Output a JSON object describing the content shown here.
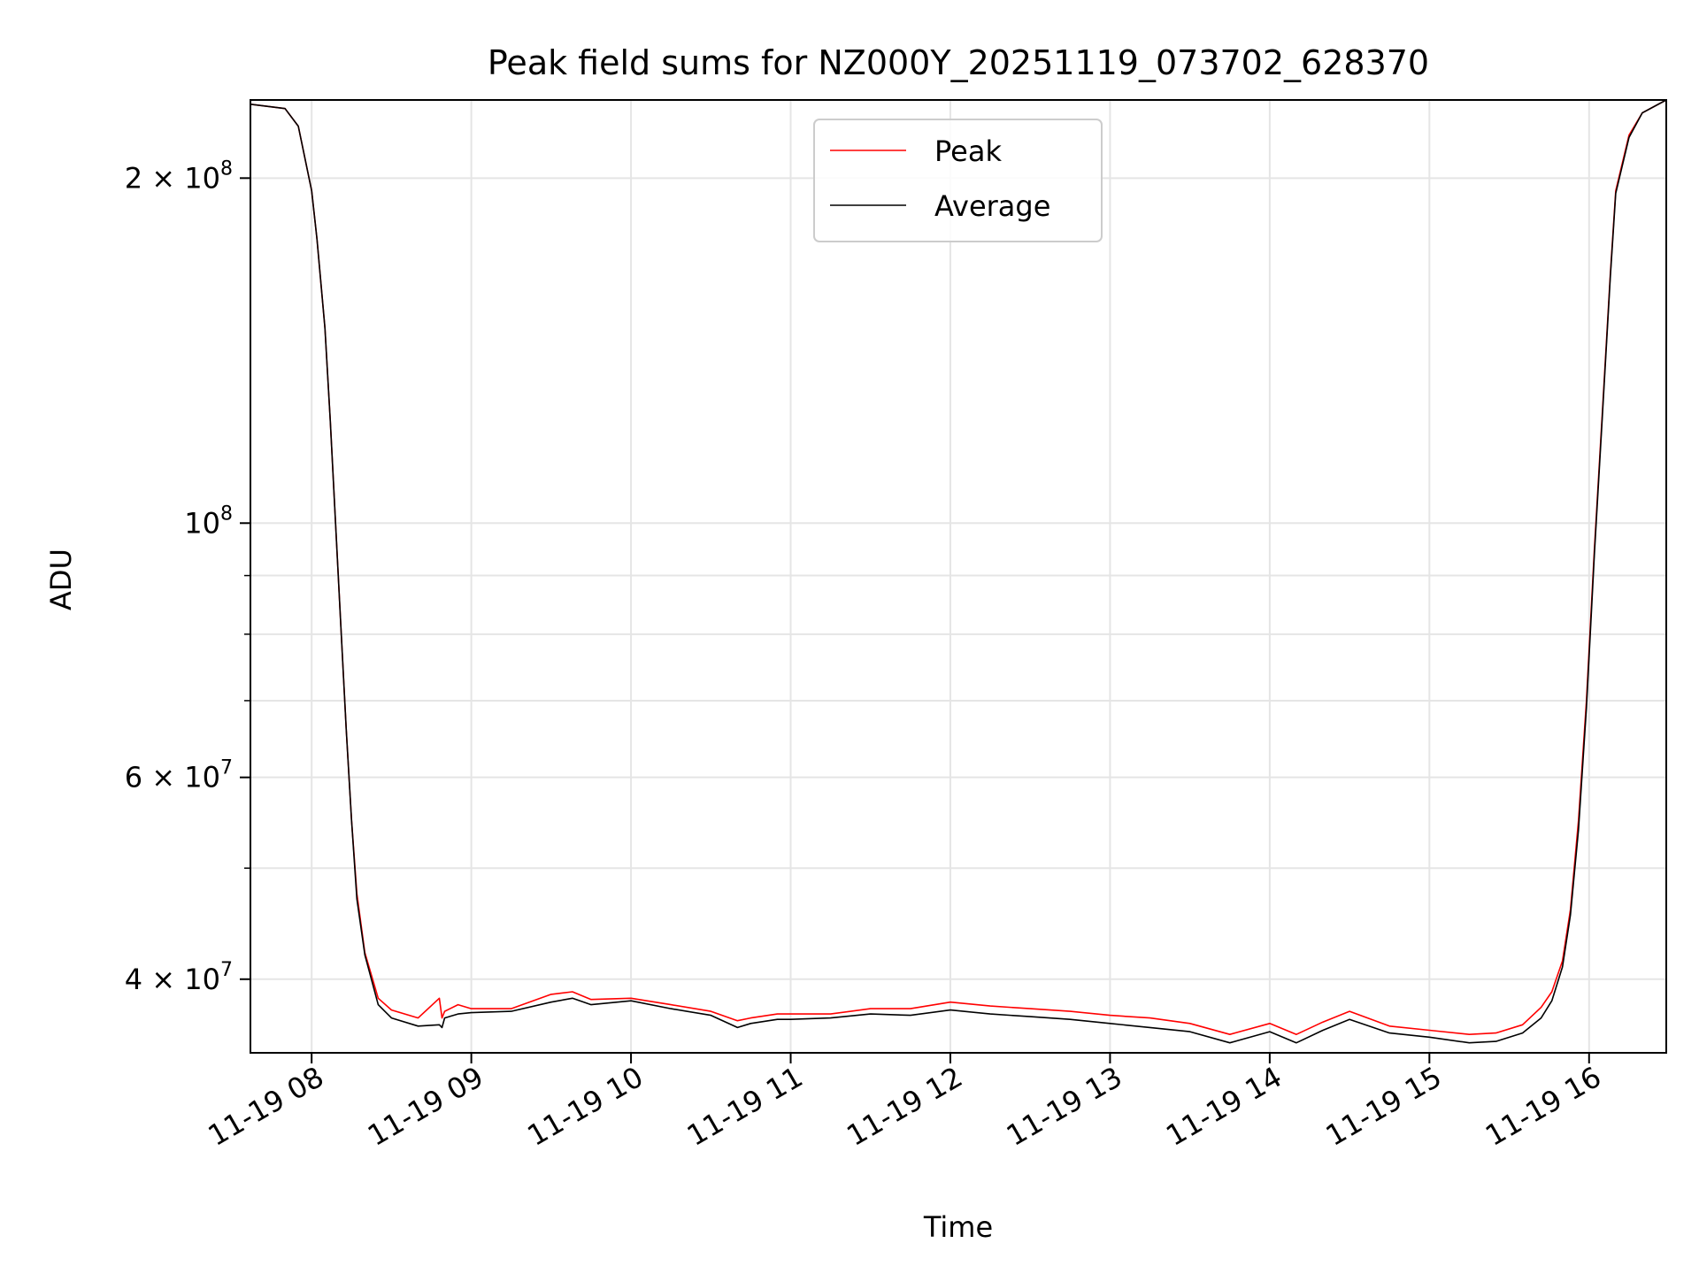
{
  "chart_data": {
    "type": "line",
    "title": "Peak field sums for NZ000Y_20251119_073702_628370",
    "xlabel": "Time",
    "ylabel": "ADU",
    "xaxis": {
      "kind": "time",
      "range": [
        "2025-11-19 07:37",
        "2025-11-19 16:29"
      ],
      "ticks": [
        {
          "value": "2025-11-19 08:00",
          "label": "11-19 08"
        },
        {
          "value": "2025-11-19 09:00",
          "label": "11-19 09"
        },
        {
          "value": "2025-11-19 10:00",
          "label": "11-19 10"
        },
        {
          "value": "2025-11-19 11:00",
          "label": "11-19 11"
        },
        {
          "value": "2025-11-19 12:00",
          "label": "11-19 12"
        },
        {
          "value": "2025-11-19 13:00",
          "label": "11-19 13"
        },
        {
          "value": "2025-11-19 14:00",
          "label": "11-19 14"
        },
        {
          "value": "2025-11-19 15:00",
          "label": "11-19 15"
        },
        {
          "value": "2025-11-19 16:00",
          "label": "11-19 16"
        }
      ]
    },
    "yaxis": {
      "scale": "log",
      "range": [
        34500000,
        234000000
      ],
      "major_ticks": [
        {
          "value": 40000000,
          "base": "4 × 10",
          "exp": "7"
        },
        {
          "value": 60000000,
          "base": "6 × 10",
          "exp": "7"
        },
        {
          "value": 100000000,
          "base": "10",
          "exp": "8"
        },
        {
          "value": 200000000,
          "base": "2 × 10",
          "exp": "8"
        }
      ],
      "minor_ticks": [
        50000000,
        70000000,
        80000000,
        90000000
      ]
    },
    "grid": true,
    "legend": {
      "position": "upper center"
    },
    "series": [
      {
        "name": "Peak",
        "color": "#ff0000",
        "x": [
          "2025-11-19 07:37",
          "2025-11-19 07:50",
          "2025-11-19 07:55",
          "2025-11-19 08:00",
          "2025-11-19 08:02",
          "2025-11-19 08:05",
          "2025-11-19 08:07",
          "2025-11-19 08:09",
          "2025-11-19 08:11",
          "2025-11-19 08:13",
          "2025-11-19 08:15",
          "2025-11-19 08:17",
          "2025-11-19 08:20",
          "2025-11-19 08:25",
          "2025-11-19 08:30",
          "2025-11-19 08:40",
          "2025-11-19 08:48",
          "2025-11-19 08:49",
          "2025-11-19 08:50",
          "2025-11-19 08:55",
          "2025-11-19 09:00",
          "2025-11-19 09:15",
          "2025-11-19 09:30",
          "2025-11-19 09:38",
          "2025-11-19 09:45",
          "2025-11-19 10:00",
          "2025-11-19 10:15",
          "2025-11-19 10:30",
          "2025-11-19 10:40",
          "2025-11-19 10:45",
          "2025-11-19 10:55",
          "2025-11-19 11:00",
          "2025-11-19 11:15",
          "2025-11-19 11:30",
          "2025-11-19 11:45",
          "2025-11-19 12:00",
          "2025-11-19 12:15",
          "2025-11-19 12:30",
          "2025-11-19 12:45",
          "2025-11-19 13:00",
          "2025-11-19 13:15",
          "2025-11-19 13:30",
          "2025-11-19 13:45",
          "2025-11-19 14:00",
          "2025-11-19 14:10",
          "2025-11-19 14:20",
          "2025-11-19 14:30",
          "2025-11-19 14:45",
          "2025-11-19 15:00",
          "2025-11-19 15:15",
          "2025-11-19 15:25",
          "2025-11-19 15:35",
          "2025-11-19 15:42",
          "2025-11-19 15:46",
          "2025-11-19 15:50",
          "2025-11-19 15:53",
          "2025-11-19 15:56",
          "2025-11-19 15:59",
          "2025-11-19 16:02",
          "2025-11-19 16:05",
          "2025-11-19 16:08",
          "2025-11-19 16:10",
          "2025-11-19 16:15",
          "2025-11-19 16:20",
          "2025-11-19 16:29"
        ],
        "y": [
          232000000,
          230000000,
          222000000,
          195000000,
          177000000,
          148000000,
          123000000,
          100000000,
          81000000,
          66000000,
          55000000,
          47500000,
          42200000,
          38500000,
          37600000,
          37000000,
          38500000,
          37000000,
          37500000,
          38000000,
          37700000,
          37700000,
          38800000,
          39000000,
          38400000,
          38500000,
          38000000,
          37500000,
          36800000,
          37000000,
          37300000,
          37300000,
          37300000,
          37700000,
          37700000,
          38200000,
          37900000,
          37700000,
          37500000,
          37200000,
          37000000,
          36600000,
          35800000,
          36600000,
          35800000,
          36700000,
          37500000,
          36400000,
          36100000,
          35800000,
          35900000,
          36500000,
          37800000,
          39000000,
          41500000,
          46000000,
          55000000,
          70000000,
          95000000,
          125000000,
          165000000,
          195000000,
          218000000,
          228000000,
          234000000
        ]
      },
      {
        "name": "Average",
        "color": "#000000",
        "x": [
          "2025-11-19 07:37",
          "2025-11-19 07:50",
          "2025-11-19 07:55",
          "2025-11-19 08:00",
          "2025-11-19 08:02",
          "2025-11-19 08:05",
          "2025-11-19 08:07",
          "2025-11-19 08:09",
          "2025-11-19 08:11",
          "2025-11-19 08:13",
          "2025-11-19 08:15",
          "2025-11-19 08:17",
          "2025-11-19 08:20",
          "2025-11-19 08:25",
          "2025-11-19 08:30",
          "2025-11-19 08:40",
          "2025-11-19 08:48",
          "2025-11-19 08:49",
          "2025-11-19 08:50",
          "2025-11-19 08:55",
          "2025-11-19 09:00",
          "2025-11-19 09:15",
          "2025-11-19 09:30",
          "2025-11-19 09:38",
          "2025-11-19 09:45",
          "2025-11-19 10:00",
          "2025-11-19 10:15",
          "2025-11-19 10:30",
          "2025-11-19 10:40",
          "2025-11-19 10:45",
          "2025-11-19 10:55",
          "2025-11-19 11:00",
          "2025-11-19 11:15",
          "2025-11-19 11:30",
          "2025-11-19 11:45",
          "2025-11-19 12:00",
          "2025-11-19 12:15",
          "2025-11-19 12:30",
          "2025-11-19 12:45",
          "2025-11-19 13:00",
          "2025-11-19 13:15",
          "2025-11-19 13:30",
          "2025-11-19 13:45",
          "2025-11-19 14:00",
          "2025-11-19 14:10",
          "2025-11-19 14:20",
          "2025-11-19 14:30",
          "2025-11-19 14:45",
          "2025-11-19 15:00",
          "2025-11-19 15:15",
          "2025-11-19 15:25",
          "2025-11-19 15:35",
          "2025-11-19 15:42",
          "2025-11-19 15:46",
          "2025-11-19 15:50",
          "2025-11-19 15:53",
          "2025-11-19 15:56",
          "2025-11-19 15:59",
          "2025-11-19 16:02",
          "2025-11-19 16:05",
          "2025-11-19 16:08",
          "2025-11-19 16:10",
          "2025-11-19 16:15",
          "2025-11-19 16:20",
          "2025-11-19 16:29"
        ],
        "y": [
          232000000,
          230000000,
          222000000,
          195000000,
          177000000,
          148000000,
          123000000,
          100000000,
          81000000,
          66000000,
          55000000,
          47000000,
          42000000,
          38000000,
          37000000,
          36400000,
          36500000,
          36300000,
          37000000,
          37300000,
          37400000,
          37500000,
          38200000,
          38500000,
          38000000,
          38300000,
          37700000,
          37200000,
          36300000,
          36600000,
          36900000,
          36900000,
          37000000,
          37300000,
          37200000,
          37600000,
          37300000,
          37100000,
          36900000,
          36600000,
          36300000,
          36000000,
          35200000,
          36000000,
          35200000,
          36100000,
          36900000,
          35900000,
          35600000,
          35200000,
          35300000,
          35900000,
          37000000,
          38300000,
          41000000,
          45500000,
          54000000,
          69000000,
          94000000,
          124000000,
          164000000,
          194000000,
          217000000,
          228000000,
          234000000
        ]
      }
    ]
  }
}
